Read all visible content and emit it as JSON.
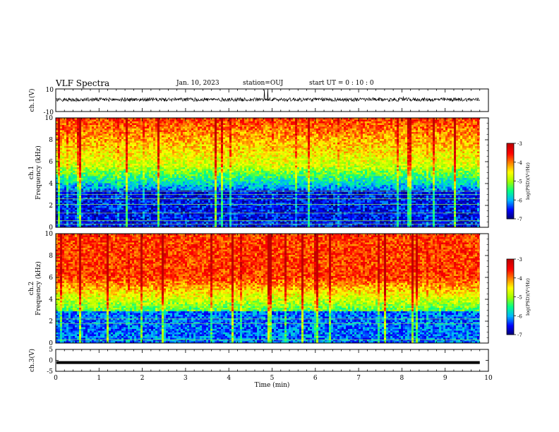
{
  "header": {
    "title": "VLF Spectra",
    "date": "Jan. 10, 2023",
    "station": "station=OUJ",
    "start": "start UT =  0 : 10 : 0"
  },
  "chart_data": [
    {
      "type": "line",
      "ylabel": "ch.1(V)",
      "ylim": [
        -10,
        10
      ],
      "ytick_labels": [
        "10",
        "-10"
      ],
      "xlim": [
        0,
        10
      ],
      "note": "noisy waveform with occasional spikes near baseline"
    },
    {
      "type": "heatmap",
      "ylabel_top": "ch.1",
      "ylabel": "Frequency (kHz)",
      "ylim": [
        0,
        10
      ],
      "yticks": [
        0,
        2,
        4,
        6,
        8,
        10
      ],
      "xlim": [
        0,
        10
      ],
      "data_end_min": 9.8,
      "colorbar": {
        "label": "log(PSD)(V²/Hz)",
        "range": [
          -7,
          -3
        ],
        "ticks": [
          -7,
          -6,
          -5,
          -4,
          -3
        ]
      }
    },
    {
      "type": "heatmap",
      "ylabel_top": "ch.2",
      "ylabel": "Frequency (kHz)",
      "ylim": [
        0,
        10
      ],
      "yticks": [
        0,
        2,
        4,
        6,
        8,
        10
      ],
      "xlim": [
        0,
        10
      ],
      "data_end_min": 9.8,
      "colorbar": {
        "label": "log(PSD)(V²/Hz)",
        "range": [
          -7,
          -3
        ],
        "ticks": [
          -7,
          -6,
          -5,
          -4,
          -3
        ]
      }
    },
    {
      "type": "line",
      "ylabel": "ch.3(V)",
      "ylim": [
        -5,
        5
      ],
      "ytick_labels": [
        "5",
        "0",
        "-5"
      ],
      "xlim": [
        0,
        10
      ],
      "xlabel": "Time (min)",
      "xticks": [
        0,
        1,
        2,
        3,
        4,
        5,
        6,
        7,
        8,
        9,
        10
      ],
      "flat_value": -1
    }
  ],
  "colors": {
    "ink": "#000000",
    "scale": [
      "#000070",
      "#0000ff",
      "#00b4ff",
      "#00ff88",
      "#a0ff00",
      "#ffff00",
      "#ff8000",
      "#ff0000",
      "#c00000"
    ]
  }
}
